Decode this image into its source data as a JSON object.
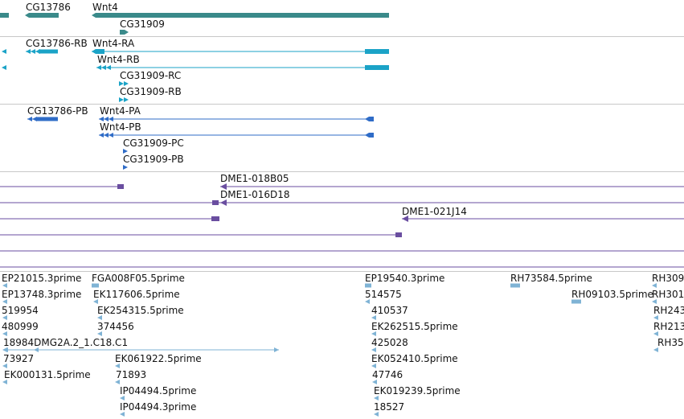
{
  "colors": {
    "gene": "#3a8a8a",
    "flybase_transcript": "#1ba3c7",
    "refseq_transcript": "#2f6cc7",
    "bac_clone": "#6a4ea0",
    "est": "#7fb3d5",
    "separator": "#c8c8c8"
  },
  "tracks": {
    "genes": {
      "labels": [
        "CG13786",
        "Wnt4",
        "CG31909"
      ]
    },
    "flybase_transcripts": {
      "labels": [
        "CG13786-RB",
        "Wnt4-RA",
        "Wnt4-RB",
        "CG31909-RC",
        "CG31909-RB"
      ]
    },
    "refseq_transcripts": {
      "labels": [
        "CG13786-PB",
        "Wnt4-PA",
        "Wnt4-PB",
        "CG31909-PC",
        "CG31909-PB"
      ]
    },
    "bac_clones": {
      "labels": [
        "DME1-018B05",
        "DME1-016D18",
        "DME1-021J14"
      ]
    },
    "ests": {
      "labels": [
        "EP21015.3prime",
        "FGA008F05.5prime",
        "EP19540.3prime",
        "RH73584.5prime",
        "RH309",
        "EP13748.3prime",
        "EK117606.5prime",
        "514575",
        "RH09103.5prime",
        "RH301",
        "519954",
        "EK254315.5prime",
        "410537",
        "RH243",
        "480999",
        "374456",
        "EK262515.5prime",
        "RH213",
        "18984DMG2A.2_1.C18.C1",
        "425028",
        "RH35",
        "73927",
        "EK061922.5prime",
        "EK052410.5prime",
        "EK000131.5prime",
        "71893",
        "47746",
        "EK019239.5prime",
        "IP04494.5prime",
        "IP04494.3prime",
        "18527"
      ]
    }
  }
}
